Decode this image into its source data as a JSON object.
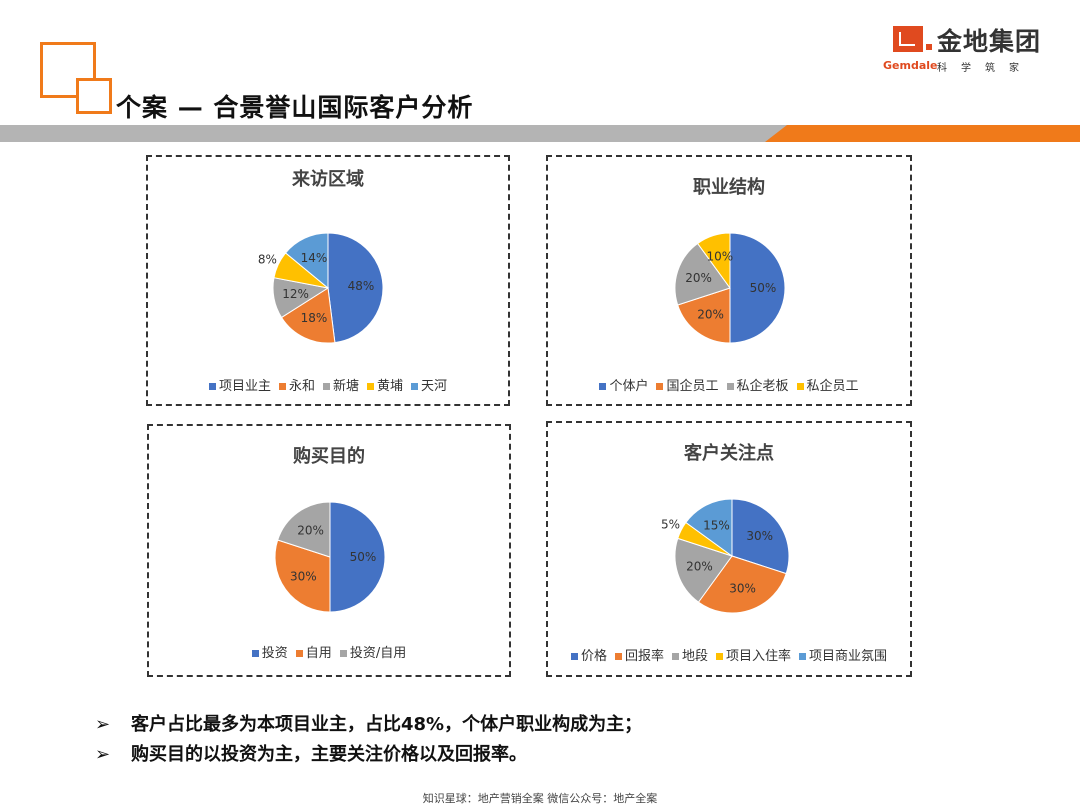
{
  "header": {
    "title": "个案 — 合景誉山国际客户分析",
    "brand_name": "金地集团",
    "brand_en": "Gemdale",
    "brand_tagline": "科学筑家"
  },
  "colors": {
    "accent": "#f07a1a",
    "band_gray": "#b4b4b4",
    "brand_red": "#e04a1f",
    "series": [
      "#4472c4",
      "#ed7d31",
      "#a5a5a5",
      "#ffc000",
      "#5b9bd5"
    ]
  },
  "chart_data": [
    {
      "type": "pie",
      "title": "来访区域",
      "categories": [
        "项目业主",
        "永和",
        "新塘",
        "黄埔",
        "天河"
      ],
      "values": [
        48,
        18,
        12,
        8,
        14
      ],
      "labels": [
        "48%",
        "18%",
        "12%",
        "8%",
        "14%"
      ]
    },
    {
      "type": "pie",
      "title": "职业结构",
      "categories": [
        "个体户",
        "国企员工",
        "私企老板",
        "私企员工"
      ],
      "values": [
        50,
        20,
        20,
        10
      ],
      "labels": [
        "50%",
        "20%",
        "20%",
        "10%"
      ]
    },
    {
      "type": "pie",
      "title": "购买目的",
      "categories": [
        "投资",
        "自用",
        "投资/自用"
      ],
      "values": [
        50,
        30,
        20
      ],
      "labels": [
        "50%",
        "30%",
        "20%"
      ]
    },
    {
      "type": "pie",
      "title": "客户关注点",
      "categories": [
        "价格",
        "回报率",
        "地段",
        "项目入住率",
        "项目商业氛围"
      ],
      "values": [
        30,
        30,
        20,
        5,
        15
      ],
      "labels": [
        "30%",
        "30%",
        "20%",
        "5%",
        "15%"
      ]
    }
  ],
  "bullets": [
    "客户占比最多为本项目业主，占比48%，个体户职业构成为主；",
    "购买目的以投资为主，主要关注价格以及回报率。"
  ],
  "bullet_marker": "➢",
  "footer": "知识星球：地产营销全案   微信公众号：地产全案"
}
